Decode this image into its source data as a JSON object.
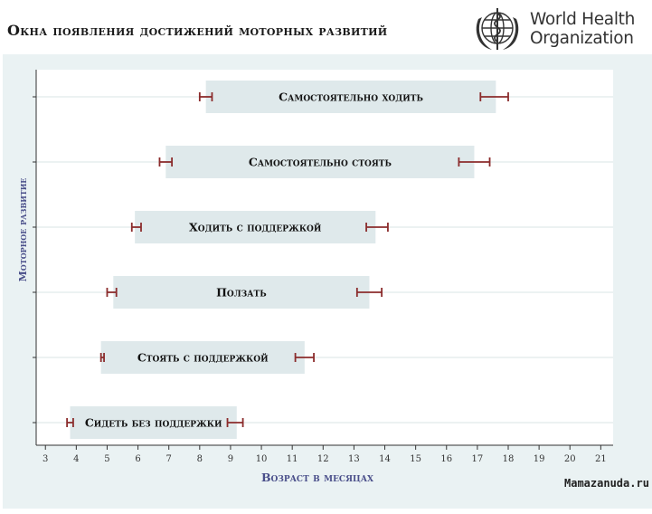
{
  "header": {
    "title": "Окна появления достижений моторных развитий",
    "org_line1": "World Health",
    "org_line2": "Organization"
  },
  "watermark": "Mamazanuda.ru",
  "colors": {
    "plot_bg": "#eaf2f3",
    "panel_bg": "#ffffff",
    "bar_fill": "#dfe9eb",
    "whisker": "#8b2c2c",
    "axis_title": "#4a4f8a",
    "gridline": "#d9e4e6"
  },
  "chart_data": {
    "type": "range-bar",
    "xlabel": "Возраст в месяцах",
    "ylabel": "Моторное развитие",
    "xlim": [
      2.7,
      21.4
    ],
    "xticks": [
      3,
      4,
      5,
      6,
      7,
      8,
      9,
      10,
      11,
      12,
      13,
      14,
      15,
      16,
      17,
      18,
      19,
      20,
      21
    ],
    "grid": "horizontal-only",
    "series": [
      {
        "label": "Самостоятельно ходить",
        "start": 8.2,
        "end": 17.6,
        "lower_ci": [
          8.0,
          8.4
        ],
        "upper_ci": [
          17.1,
          18.0
        ]
      },
      {
        "label": "Самостоятельно стоять",
        "start": 6.9,
        "end": 16.9,
        "lower_ci": [
          6.7,
          7.1
        ],
        "upper_ci": [
          16.4,
          17.4
        ]
      },
      {
        "label": "Ходить с поддержкой",
        "start": 5.9,
        "end": 13.7,
        "lower_ci": [
          5.8,
          6.1
        ],
        "upper_ci": [
          13.4,
          14.1
        ]
      },
      {
        "label": "Ползать",
        "start": 5.2,
        "end": 13.5,
        "lower_ci": [
          5.0,
          5.3
        ],
        "upper_ci": [
          13.1,
          13.9
        ]
      },
      {
        "label": "Стоять с поддержкой",
        "start": 4.8,
        "end": 11.4,
        "lower_ci": [
          4.8,
          4.9
        ],
        "upper_ci": [
          11.1,
          11.7
        ]
      },
      {
        "label": "Сидеть без поддержки",
        "start": 3.8,
        "end": 9.2,
        "lower_ci": [
          3.7,
          3.9
        ],
        "upper_ci": [
          8.9,
          9.4
        ]
      }
    ]
  }
}
